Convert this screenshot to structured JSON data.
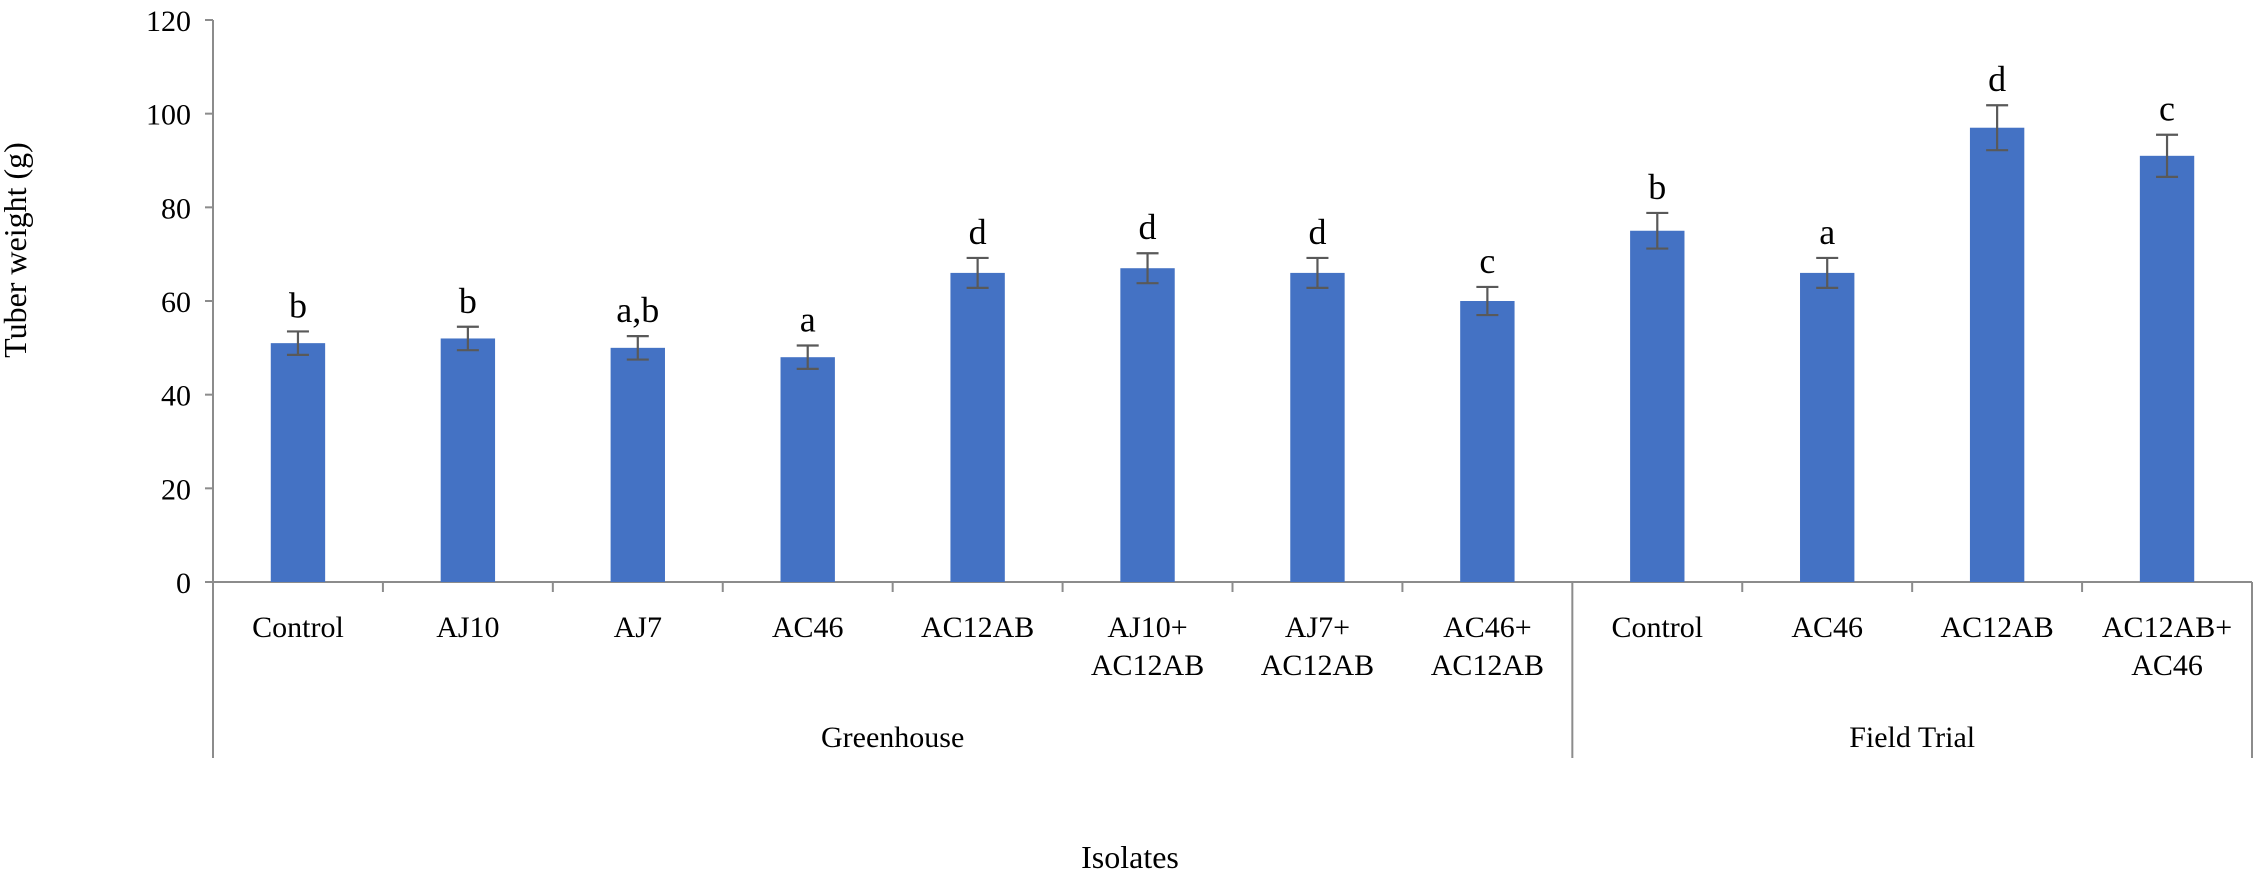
{
  "chart_data": {
    "type": "bar",
    "ylabel": "Tuber weight (g)",
    "xlabel": "Isolates",
    "ylim": [
      0,
      120
    ],
    "yticks": [
      0,
      20,
      40,
      60,
      80,
      100,
      120
    ],
    "grid": false,
    "bar_color": "#4472C4",
    "errorbar_color": "#595959",
    "groups": [
      {
        "name": "Greenhouse",
        "categories": [
          [
            "Control"
          ],
          [
            "AJ10"
          ],
          [
            "AJ7"
          ],
          [
            "AC46"
          ],
          [
            "AC12AB"
          ],
          [
            "AJ10+",
            "AC12AB"
          ],
          [
            "AJ7+",
            "AC12AB"
          ],
          [
            "AC46+",
            "AC12AB"
          ]
        ],
        "values": [
          51,
          52,
          50,
          48,
          66,
          67,
          66,
          60
        ],
        "errors": [
          2.5,
          2.5,
          2.5,
          2.5,
          3.2,
          3.2,
          3.2,
          3.0
        ],
        "letters": [
          "b",
          "b",
          "a,b",
          "a",
          "d",
          "d",
          "d",
          "c"
        ]
      },
      {
        "name": "Field Trial",
        "categories": [
          [
            "Control"
          ],
          [
            "AC46"
          ],
          [
            "AC12AB"
          ],
          [
            "AC12AB+",
            "AC46"
          ]
        ],
        "values": [
          75,
          66,
          97,
          91
        ],
        "errors": [
          3.8,
          3.2,
          4.8,
          4.5
        ],
        "letters": [
          "b",
          "a",
          "d",
          "c"
        ]
      }
    ]
  }
}
